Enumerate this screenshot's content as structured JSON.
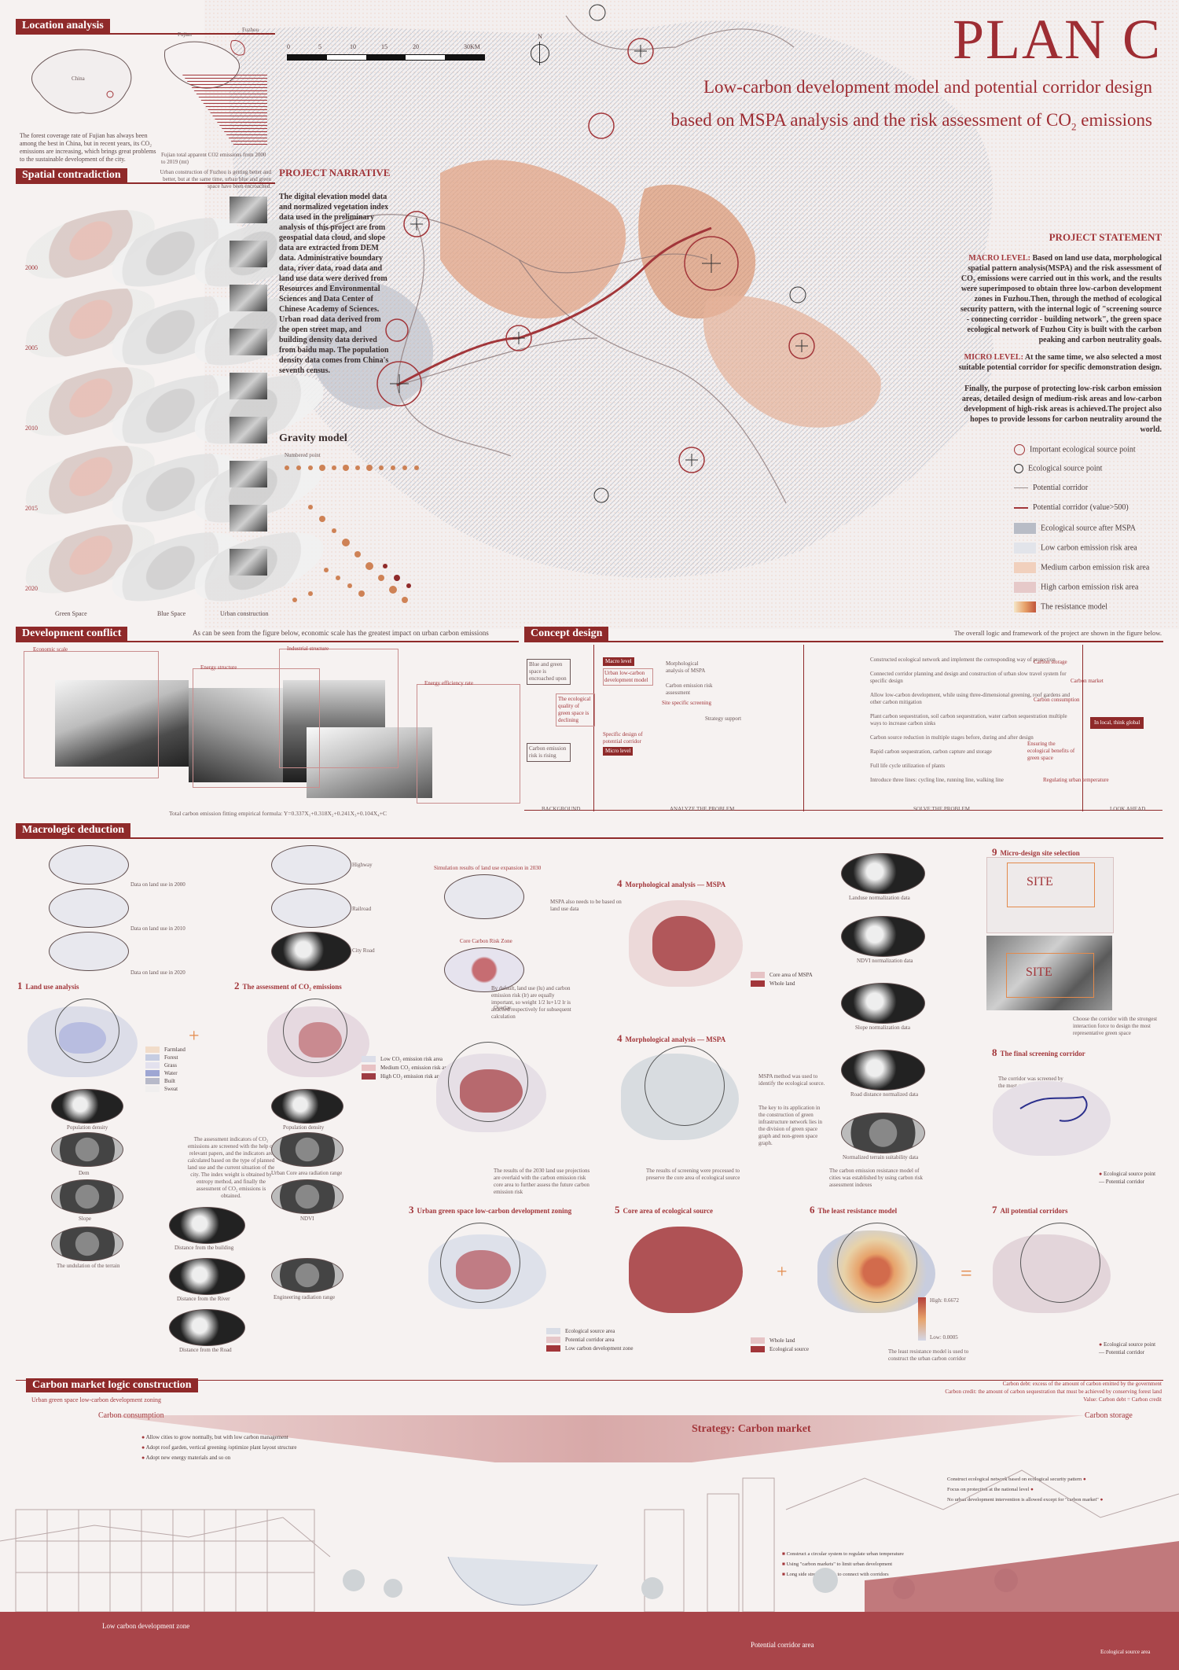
{
  "title": "PLAN C",
  "subtitle_line1": "Low-carbon development model and potential corridor design",
  "subtitle_line2": "based on MSPA analysis and the risk assessment of CO",
  "subtitle_co2_sub": "2",
  "subtitle_tail": " emissions",
  "scale_bar": {
    "labels": [
      "0",
      "5",
      "10",
      "15",
      "20",
      "30KM"
    ]
  },
  "north_label": "N",
  "location": {
    "header": "Location analysis",
    "map_labels": [
      "China",
      "Fujian",
      "Fuzhou"
    ],
    "text": "The forest coverage rate of Fujian has always been among the best in China, but in recent years, its CO₂ emissions are increasing, which brings great problems to the sustainable development of the city.",
    "chart_caption": "Fujian total apparent CO2 emissions from 2000 to 2019 (mt)"
  },
  "spatial": {
    "header": "Spatial contradiction",
    "note": "Urban construction of Fuzhou is getting better and better, but at the same time, urban blue and green space have been encroached.",
    "years": [
      "2000",
      "2005",
      "2010",
      "2015",
      "2020"
    ],
    "bottom_labels": [
      "Green Space",
      "Blue Space",
      "Urban construction"
    ]
  },
  "narrative": {
    "title": "PROJECT NARRATIVE",
    "text": "The digital elevation model data and normalized vegetation index data used in the preliminary analysis of this project are from geospatial data cloud, and slope data are extracted from DEM data. Administrative boundary data, river data, road data and land use data were derived from Resources and Environmental Sciences and Data Center of Chinese Academy of Sciences. Urban road data derived from the open street map, and building density data derived from baidu map. The population density data comes from China's seventh census."
  },
  "gravity": {
    "title": "Gravity model",
    "legend_label": "Numbered point"
  },
  "statement": {
    "title": "PROJECT STATEMENT",
    "macro_label": "MACRO LEVEL:",
    "macro": "Based on land use data, morphological spatial pattern analysis(MSPA) and the risk assessment of CO₂ emissions were carried out in this work, and the results were superimposed to obtain three low-carbon development zones in Fuzhou.Then, through the method of ecological security pattern, with the internal logic of \"screening source - connecting corridor - building network\", the green space ecological network of Fuzhou City is built with the carbon peaking and carbon neutrality goals.",
    "micro_label": "MICRO LEVEL:",
    "micro": "At the same time, we also selected a most suitable potential corridor for specific demonstration design.",
    "final": "Finally, the purpose of protecting low-risk carbon emission areas, detailed design of medium-risk areas and low-carbon development of high-risk areas is achieved.The project also hopes to provide lessons for carbon neutrality around the world."
  },
  "map_legend": [
    {
      "label": "Important ecological source point",
      "color": "#a2363a"
    },
    {
      "label": "Ecological source point",
      "color": "#4a3b3b"
    },
    {
      "label": "Potential corridor",
      "color": "#9a8f8f"
    },
    {
      "label": "Potential corridor (value>500)",
      "color": "#a2363a"
    },
    {
      "label": "Ecological source after MSPA",
      "color": "#b8bcc6"
    },
    {
      "label": "Low carbon emission risk area",
      "color": "#e2e4ea"
    },
    {
      "label": "Medium carbon emission risk area",
      "color": "#f1d0bd"
    },
    {
      "label": "High carbon emission risk area",
      "color": "#e6c9c9"
    },
    {
      "label": "The resistance model",
      "color": "#e7a26a"
    }
  ],
  "development": {
    "header": "Development conflict",
    "note": "As can be seen from the figure below, economic scale has the greatest impact on urban carbon emissions",
    "items": [
      "Economic scale",
      "Energy structure",
      "Industrial structure",
      "Energy efficiency rate"
    ],
    "formula": "Total carbon emission fitting empirical formula:  Y=0.337X₁+0.318X₂+0.241X₃+0.104X₄+C"
  },
  "concept": {
    "header": "Concept design",
    "note": "The overall logic and framework of the project are shown in the figure below.",
    "columns": [
      "BACKGROUND",
      "ANALYZE THE PROBLEM",
      "SOLVE THE PROBLEM",
      "LOOK AHEAD"
    ],
    "left_boxes": [
      "Blue and green space is encroached upon",
      "The ecological quality of green space is declining",
      "Carbon emission risk is rising"
    ],
    "nodes": [
      "Macro level",
      "Urban low-carbon development model",
      "Micro level",
      "Specific design of potential corridor",
      "Morphological analysis of MSPA",
      "Carbon emission risk assessment",
      "Site specific screening",
      "Strategy support"
    ],
    "right_items": [
      "Constructed ecological network and implement the corresponding way of protection",
      "Connected corridor planning and design and construction of urban slow travel system for specific design",
      "Allow low-carbon development, while using three-dimensional greening, roof gardens and other carbon mitigation",
      "Plant carbon sequestration, soil carbon sequestration, water carbon sequestration multiple ways to increase carbon sinks",
      "Carbon source reduction in multiple stages before, during and after design",
      "Rapid carbon sequestration, carbon capture and storage",
      "Full life cycle utilization of plants",
      "Introduce three lines: cycling line, running line, walking line"
    ],
    "outcomes": [
      "Carbon storage",
      "Carbon market",
      "Carbon consumption",
      "Ensuring the ecological benefits of green space",
      "Regulating urban temperature",
      "In local, think global"
    ]
  },
  "macro": {
    "header": "Macrologic deduction",
    "landuse_labels": [
      "Data on land use in 2000",
      "Data on land use in 2010",
      "Data on land use in 2020"
    ],
    "road_labels": [
      "Highway",
      "Railroad",
      "City Road"
    ],
    "sim_label": "Simulation results of land use expansion in 2030",
    "core_label": "Core Carbon Risk Zone",
    "overlay_label": "Overlay",
    "overlay_text": "By default, land use (lu) and carbon emission risk (lr) are equally important, so weight 1/2 lu+1/2 lr is attached respectively for subsequent calculation",
    "steps": [
      {
        "n": "1",
        "t": "Land use analysis"
      },
      {
        "n": "2",
        "t": "The assessment of CO₂ emissions"
      },
      {
        "n": "3",
        "t": "Urban green space low-carbon development zoning"
      },
      {
        "n": "4",
        "t": "Morphological analysis — MSPA"
      },
      {
        "n": "5",
        "t": "Core area of ecological source"
      },
      {
        "n": "6",
        "t": "The least resistance model"
      },
      {
        "n": "7",
        "t": "All potential corridors"
      },
      {
        "n": "8",
        "t": "The final screening corridor"
      },
      {
        "n": "9",
        "t": "Micro-design site selection"
      }
    ],
    "landuse_legend": [
      "Farmland",
      "Forest",
      "Grass",
      "Water",
      "Built",
      "Sweat"
    ],
    "risk_legend": [
      "Low CO₂ emission risk area",
      "Medium CO₂ emission risk area",
      "High CO₂ emission risk area"
    ],
    "mspa_legend": [
      "Core area of MSPA",
      "Whole land"
    ],
    "mspa_text1": "MSPA also needs to be based on land use data",
    "mspa_text2": "MSPA method was used to identify the ecological source.",
    "mspa_text3": "The key to its application in the construction of green infrastructure network lies in the division of green space graph and non-green space graph.",
    "assessment_text": "The assessment indicators of CO₂ emissions are screened with the help of relevant papers, and the indicators are calculated based on the type of planned land use and the current situation of the city. The index weight is obtained by entropy method, and finally the assessment of CO₂ emissions is obtained.",
    "factors": [
      "Population density",
      "Dem",
      "Slope",
      "The undulation of the terrain",
      "Distance from the building",
      "Distance from the River",
      "Distance from the Road",
      "Population density",
      "Urban Core area radiation range",
      "NDVI",
      "Engineering radiation range"
    ],
    "norm_labels": [
      "Landuse normalization data",
      "NDVI normalization data",
      "Slope normalization data",
      "Road distance normalized data",
      "Normalized terrain suitability data"
    ],
    "overlay_result": "The results of the 2030 land use projections are overlaid with the carbon emission risk core area to further assess the future carbon emission risk",
    "screen_result": "The results of screening were processed to preserve the core area of ecological source",
    "resistance_text": "The carbon emission resistance model of cities was established by using carbon risk assessment indexes",
    "least_text": "The least resistance model is used to construct the urban carbon corridor",
    "zoning_legend": [
      "Ecological source area",
      "Potential corridor area",
      "Low carbon development zone"
    ],
    "source_legend": [
      "Whole land",
      "Ecological source"
    ],
    "resist_range": [
      "High: 0.6672",
      "Low: 0.0005"
    ],
    "corridor_legend": [
      "Ecological source point",
      "Potential corridor"
    ],
    "final_text": "The corridor was screened by the most gravity model",
    "site_label": "SITE",
    "site_text": "Choose the corridor with the strongest interaction force to design the most representative green space"
  },
  "market": {
    "header": "Carbon market logic construction",
    "sub": "Urban green space low-carbon development zoning",
    "debt_def": "Carbon debt: excess of the amount of carbon emitted by the government",
    "credit_def": "Carbon credit: the amount of carbon sequestration that must be achieved by conserving forest land",
    "value": "Value: Carbon debt = Carbon credit",
    "strategy": "Strategy:  Carbon market",
    "left_label": "Carbon consumption",
    "right_label": "Carbon storage",
    "bullets_left": [
      "Allow cities to grow normally, but with low carbon management",
      "Adopt roof garden, vertical greening /optimize plant layout structure",
      "Adopt new energy materials and so on"
    ],
    "bullets_right": [
      "Construct ecological network based on ecological security pattern",
      "Focus on protection at the national level",
      "No urban development intervention is allowed except for \"carbon market\""
    ],
    "bullets_mid": [
      "Construct a circular system to regulate urban temperature",
      "Using \"carbon markets\" to limit urban development",
      "Long side street gardens to connect with corridors"
    ],
    "zones": [
      "Low carbon development zone",
      "Potential corridor area",
      "Ecological source area"
    ]
  }
}
